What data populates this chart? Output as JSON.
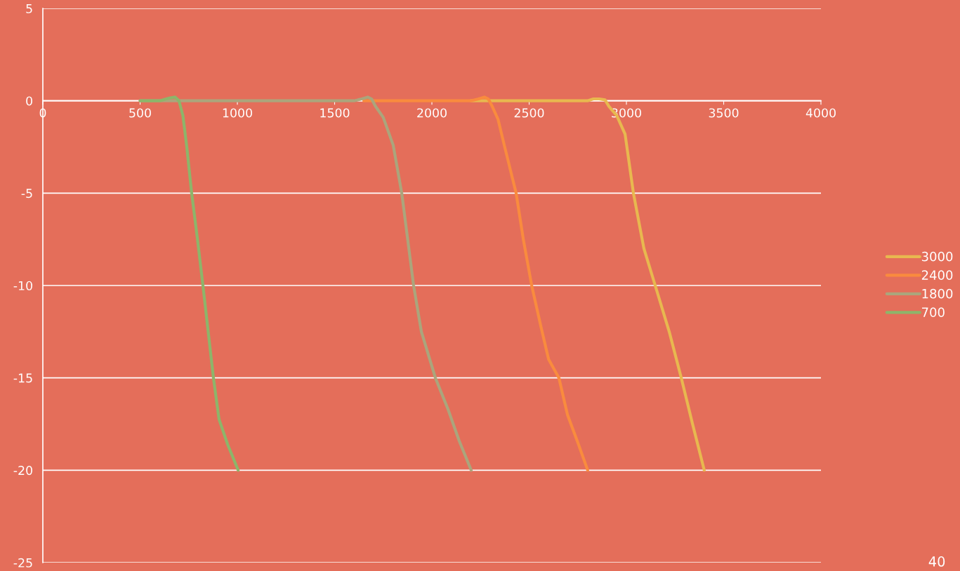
{
  "chart_data": {
    "type": "line",
    "xlim": [
      0,
      4000
    ],
    "xticks": [
      0,
      500,
      1000,
      1500,
      2000,
      2500,
      3000,
      3500,
      4000
    ],
    "ylim": [
      -25,
      5
    ],
    "yticks": [
      -25,
      -20,
      -15,
      -10,
      -5,
      0,
      5
    ],
    "grid": "y",
    "legend": "right",
    "line_style": "solid",
    "marker": "none",
    "annotations": [
      "40"
    ],
    "series": [
      {
        "name": "3000",
        "color": "#e8b84f",
        "x": [
          2200,
          2800,
          2830,
          2860,
          2890,
          2910,
          2950,
          2993,
          3036,
          3090,
          3148,
          3220,
          3282,
          3340,
          3400
        ],
        "values": [
          0,
          0,
          0.1,
          0.1,
          0.05,
          -0.3,
          -0.8,
          -1.8,
          -5,
          -8,
          -10,
          -12.5,
          -15,
          -17.5,
          -20
        ]
      },
      {
        "name": "2400",
        "color": "#f98b3e",
        "x": [
          1650,
          2200,
          2240,
          2270,
          2290,
          2310,
          2340,
          2372,
          2433,
          2470,
          2513,
          2560,
          2600,
          2653,
          2697,
          2750,
          2801
        ],
        "values": [
          0,
          0,
          0.1,
          0.2,
          0.1,
          -0.3,
          -1,
          -2.4,
          -5,
          -7.5,
          -10,
          -12.2,
          -14,
          -15,
          -17,
          -18.5,
          -20
        ]
      },
      {
        "name": "1800",
        "color": "#aba57c",
        "x": [
          500,
          1600,
          1640,
          1670,
          1690,
          1710,
          1750,
          1801,
          1845,
          1906,
          1946,
          2018,
          2083,
          2140,
          2202
        ],
        "values": [
          0,
          0,
          0.1,
          0.2,
          0.1,
          -0.3,
          -0.9,
          -2.4,
          -5,
          -10,
          -12.5,
          -15,
          -16.7,
          -18.4,
          -20
        ]
      },
      {
        "name": "700",
        "color": "#8db56a",
        "x": [
          500,
          600,
          650,
          680,
          700,
          720,
          740,
          765,
          795,
          823,
          850,
          877,
          906,
          950,
          1004
        ],
        "values": [
          0,
          0,
          0.15,
          0.2,
          0,
          -0.8,
          -2.5,
          -5,
          -7.5,
          -10,
          -12.5,
          -15,
          -17.25,
          -18.6,
          -20
        ]
      }
    ]
  }
}
